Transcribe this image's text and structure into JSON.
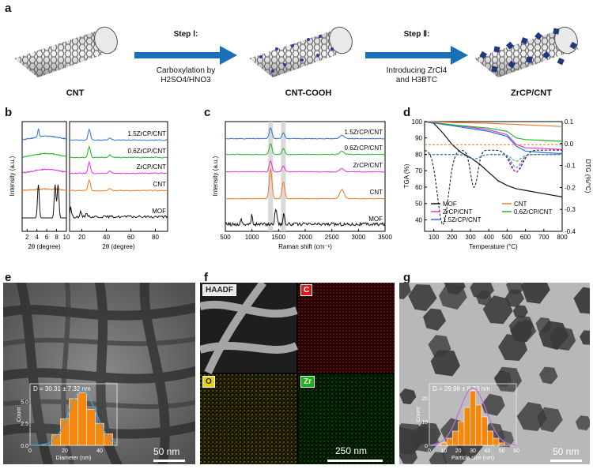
{
  "panel_letters": {
    "a": "a",
    "b": "b",
    "c": "c",
    "d": "d",
    "e": "e",
    "f": "f",
    "g": "g"
  },
  "scheme": {
    "stage1": "CNT",
    "stage2": "CNT-COOH",
    "stage3": "ZrCP/CNT",
    "step1_title": "Step Ⅰ:",
    "step1_desc_line1": "Carboxylation by",
    "step1_desc_line2": "H2SO4/HNO3",
    "step2_title": "Step Ⅱ:",
    "step2_desc_line1": "Introducing ZrCl4",
    "step2_desc_line2": "and H3BTC",
    "arrow_color": "#1a6fb5"
  },
  "chart_data": [
    {
      "id": "b",
      "type": "line",
      "subtitle": "XRD patterns",
      "ylabel": "Intensity (a.u.)",
      "left_panel": {
        "xlabel": "2θ (degree)",
        "xticks": [
          2,
          4,
          6,
          8,
          10
        ],
        "xlim": [
          1,
          10
        ]
      },
      "right_panel": {
        "xlabel": "2θ (degree)",
        "xticks": [
          20,
          40,
          60,
          80
        ],
        "xlim": [
          10,
          90
        ]
      },
      "series": [
        {
          "name": "1.5ZrCP/CNT",
          "color": "#2a73d6",
          "offset": 5
        },
        {
          "name": "0.6ZrCP/CNT",
          "color": "#22b522",
          "offset": 4
        },
        {
          "name": "ZrCP/CNT",
          "color": "#e030e0",
          "offset": 3
        },
        {
          "name": "CNT",
          "color": "#f07a20",
          "offset": 2
        },
        {
          "name": "MOF",
          "color": "#111111",
          "offset": 1
        }
      ],
      "peaks_left_deg": [
        4.3,
        7.7,
        8.3
      ],
      "peaks_right_deg": [
        26,
        43
      ]
    },
    {
      "id": "c",
      "type": "line",
      "xlabel": "Raman shift (cm⁻¹)",
      "ylabel": "Intensity (a.u.)",
      "xticks": [
        500,
        1000,
        1500,
        2000,
        2500,
        3000,
        3500
      ],
      "xlim": [
        500,
        3500
      ],
      "bands_cm": [
        1350,
        1590,
        2690
      ],
      "series": [
        {
          "name": "1.5ZrCP/CNT",
          "color": "#2a73d6"
        },
        {
          "name": "0.6ZrCP/CNT",
          "color": "#22b522"
        },
        {
          "name": "ZrCP/CNT",
          "color": "#e030e0"
        },
        {
          "name": "CNT",
          "color": "#f07a20"
        },
        {
          "name": "MOF",
          "color": "#111111"
        }
      ]
    },
    {
      "id": "d",
      "type": "line",
      "xlabel": "Temperature (°C)",
      "ylabel": "TGA (%)",
      "ylabel_right": "DTG (%/°C)",
      "xticks": [
        100,
        200,
        300,
        400,
        500,
        600,
        700,
        800
      ],
      "xlim": [
        50,
        800
      ],
      "yticks_left": [
        40,
        50,
        60,
        70,
        80,
        90,
        100
      ],
      "ylim_left": [
        33,
        100
      ],
      "yticks_right": [
        0.1,
        0.0,
        -0.1,
        -0.2,
        -0.3,
        -0.4
      ],
      "ylim_right": [
        -0.4,
        0.1
      ],
      "legend": [
        "MOF",
        "CNT",
        "ZrCP/CNT",
        "0.6ZrCP/CNT",
        "1.5ZrCP/CNT"
      ],
      "series": [
        {
          "name": "MOF",
          "color": "#111111",
          "x": [
            50,
            100,
            150,
            200,
            250,
            300,
            350,
            400,
            450,
            500,
            550,
            600,
            700,
            800
          ],
          "y": [
            100,
            99,
            93,
            86,
            81,
            78,
            74,
            69,
            64,
            61,
            59,
            58,
            56,
            54
          ]
        },
        {
          "name": "CNT",
          "color": "#f07a20",
          "x": [
            50,
            200,
            400,
            600,
            700,
            800
          ],
          "y": [
            100,
            99.5,
            99,
            98,
            97.5,
            97
          ]
        },
        {
          "name": "ZrCP/CNT",
          "color": "#e030e0",
          "x": [
            50,
            200,
            400,
            500,
            550,
            600,
            700,
            800
          ],
          "y": [
            100,
            98,
            95,
            92,
            86,
            84,
            83.5,
            83
          ]
        },
        {
          "name": "0.6ZrCP/CNT",
          "color": "#22b522",
          "x": [
            50,
            200,
            400,
            500,
            550,
            600,
            700,
            800
          ],
          "y": [
            100,
            98,
            96,
            94,
            90,
            89,
            88.5,
            88
          ]
        },
        {
          "name": "1.5ZrCP/CNT",
          "color": "#2a73d6",
          "x": [
            50,
            200,
            400,
            500,
            550,
            600,
            700,
            800
          ],
          "y": [
            100,
            97.5,
            94,
            91,
            85,
            82,
            81,
            80.5
          ]
        }
      ],
      "dtg_peaks_c": [
        150,
        320,
        550
      ]
    },
    {
      "id": "e_inset",
      "type": "bar",
      "title": "D = 30.31 ± 7.32 nm",
      "xlabel": "Diameter (nm)",
      "ylabel": "Count",
      "xticks": [
        0,
        20,
        40
      ],
      "xlim": [
        0,
        50
      ],
      "categories": [
        15,
        20,
        25,
        30,
        35,
        40,
        45
      ],
      "values": [
        1.2,
        3.0,
        5.3,
        6.0,
        4.1,
        2.5,
        1.3
      ]
    },
    {
      "id": "g_inset",
      "type": "bar",
      "title": "D = 29.98 ± 8.83 nm",
      "xlabel": "Particle size (nm)",
      "ylabel": "Count",
      "xticks": [
        0,
        10,
        20,
        30,
        40,
        50,
        60
      ],
      "xlim": [
        0,
        60
      ],
      "categories": [
        10,
        14,
        18,
        22,
        26,
        30,
        34,
        38,
        42,
        46,
        50
      ],
      "values": [
        1,
        3,
        6,
        10,
        16,
        23,
        17,
        12,
        6,
        3,
        1
      ]
    }
  ],
  "panel_e": {
    "scalebar": "50 nm",
    "inset_ticks_y": [
      "0.0",
      "2.5",
      "5.0"
    ]
  },
  "panel_f": {
    "tiles": [
      "HAADF",
      "C",
      "O",
      "Zr"
    ],
    "scalebar": "250 nm",
    "tile_colors": {
      "C": "#d81b1b",
      "O": "#e6d21a",
      "Zr": "#19b219"
    }
  },
  "panel_g": {
    "scalebar": "50 nm",
    "inset_ticks_y": [
      "0",
      "10",
      "20"
    ]
  }
}
